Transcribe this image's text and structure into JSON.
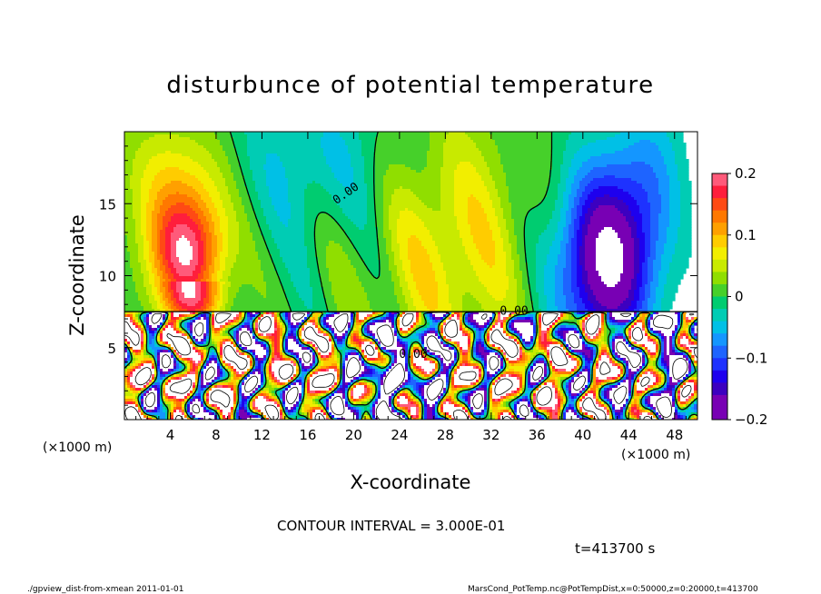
{
  "chart_data": {
    "type": "heatmap",
    "title": "disturbunce of potential temperature",
    "xlabel": "X-coordinate",
    "ylabel": "Z-coordinate",
    "x_unit_left": "(×1000 m)",
    "x_unit_right": "(×1000 m)",
    "x_range": [
      0,
      50
    ],
    "y_range": [
      0,
      20
    ],
    "x_ticks": [
      4,
      8,
      12,
      16,
      20,
      24,
      28,
      32,
      36,
      40,
      44,
      48
    ],
    "y_ticks": [
      5,
      10,
      15
    ],
    "colorbar": {
      "range": [
        -0.2,
        0.2
      ],
      "tick_values": [
        0.2,
        0.1,
        0,
        -0.1,
        -0.2
      ],
      "tick_labels": [
        "0.2",
        "0.1",
        "0",
        "−0.1",
        "−0.2"
      ],
      "levels": [
        {
          "from": 0.2,
          "color": "#ffa0c0"
        },
        {
          "from": 0.18,
          "color": "#ff5a7a"
        },
        {
          "from": 0.16,
          "color": "#ff1e3c"
        },
        {
          "from": 0.14,
          "color": "#ff4a14"
        },
        {
          "from": 0.12,
          "color": "#ff7800"
        },
        {
          "from": 0.1,
          "color": "#ffa000"
        },
        {
          "from": 0.08,
          "color": "#ffcc00"
        },
        {
          "from": 0.06,
          "color": "#f2ee00"
        },
        {
          "from": 0.04,
          "color": "#c8ea00"
        },
        {
          "from": 0.02,
          "color": "#90de00"
        },
        {
          "from": 0.0,
          "color": "#46d02a"
        },
        {
          "from": -0.02,
          "color": "#00cc70"
        },
        {
          "from": -0.04,
          "color": "#00ccb4"
        },
        {
          "from": -0.06,
          "color": "#00c0e6"
        },
        {
          "from": -0.08,
          "color": "#1496ff"
        },
        {
          "from": -0.1,
          "color": "#1e64ff"
        },
        {
          "from": -0.12,
          "color": "#1e32ff"
        },
        {
          "from": -0.14,
          "color": "#1e00ee"
        },
        {
          "from": -0.16,
          "color": "#3c00c0"
        },
        {
          "from": -0.18,
          "color": "#7800b4"
        }
      ]
    },
    "inversion_height": 7.5,
    "warm_anomaly": {
      "x_center": 5.5,
      "z_center": 11.5,
      "peak": 0.2
    },
    "cold_anomaly": {
      "x_center": 42,
      "z_center": 11,
      "peak": -0.2
    },
    "contour_labels": [
      {
        "text": "0.00",
        "x": 19.5,
        "z": 15.5
      },
      {
        "text": "0.00",
        "x": 25.2,
        "z": 4.3
      },
      {
        "text": "0.00",
        "x": 34,
        "z": 7.3
      }
    ],
    "contour_interval_text": "CONTOUR INTERVAL = 3.000E-01",
    "time_text": "t=413700 s"
  },
  "footer": {
    "left": "./gpview_dist-from-xmean  2011-01-01",
    "right": "MarsCond_PotTemp.nc@PotTempDist,x=0:50000,z=0:20000,t=413700"
  }
}
